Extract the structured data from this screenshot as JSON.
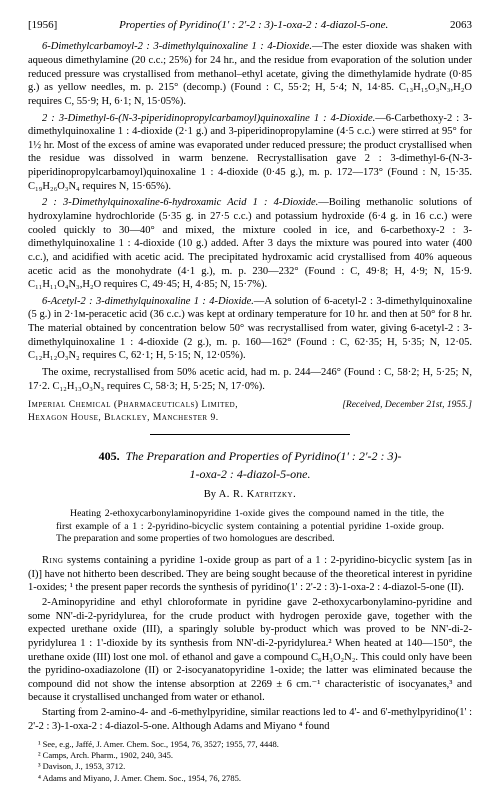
{
  "header": {
    "year": "[1956]",
    "title": "Properties of Pyridino(1' : 2'-2 : 3)-1-oxa-2 : 4-diazol-5-one.",
    "page": "2063"
  },
  "sections": [
    {
      "head": "6-Dimethylcarbamoyl-2 : 3-dimethylquinoxaline 1 : 4-Dioxide.",
      "body": "—The ester dioxide was shaken with aqueous dimethylamine (20 c.c.; 25%) for 24 hr., and the residue from evaporation of the solution under reduced pressure was crystallised from methanol–ethyl acetate, giving the dimethylamide hydrate (0·85 g.) as yellow needles, m. p. 215° (decomp.) (Found : C, 55·2; H, 5·4; N, 14·85. C₁₃H₁₅O₃N₃,H₂O requires C, 55·9; H, 6·1; N, 15·05%)."
    },
    {
      "head": "2 : 3-Dimethyl-6-(N-3-piperidinopropylcarbamoyl)quinoxaline 1 : 4-Dioxide.",
      "body": "—6-Carbethoxy-2 : 3-dimethylquinoxaline 1 : 4-dioxide (2·1 g.) and 3-piperidinopropylamine (4·5 c.c.) were stirred at 95° for 1½ hr. Most of the excess of amine was evaporated under reduced pressure; the product crystallised when the residue was dissolved in warm benzene. Recrystallisation gave 2 : 3-dimethyl-6-(N-3-piperidinopropylcarbamoyl)quinoxaline 1 : 4-dioxide (0·45 g.), m. p. 172—173° (Found : N, 15·35. C₁₉H₂₆O₃N₄ requires N, 15·65%)."
    },
    {
      "head": "2 : 3-Dimethylquinoxaline-6-hydroxamic Acid 1 : 4-Dioxide.",
      "body": "—Boiling methanolic solutions of hydroxylamine hydrochloride (5·35 g. in 27·5 c.c.) and potassium hydroxide (6·4 g. in 16 c.c.) were cooled quickly to 30—40° and mixed, the mixture cooled in ice, and 6-carbethoxy-2 : 3-dimethylquinoxaline 1 : 4-dioxide (10 g.) added. After 3 days the mixture was poured into water (400 c.c.), and acidified with acetic acid. The precipitated hydroxamic acid crystallised from 40% aqueous acetic acid as the monohydrate (4·1 g.), m. p. 230—232° (Found : C, 49·8; H, 4·9; N, 15·9. C₁₁H₁₁O₄N₃,H₂O requires C, 49·45; H, 4·85; N, 15·7%)."
    },
    {
      "head": "6-Acetyl-2 : 3-dimethylquinoxaline 1 : 4-Dioxide.",
      "body": "—A solution of 6-acetyl-2 : 3-dimethylquinoxaline (5 g.) in 2·1м-peracetic acid (36 c.c.) was kept at ordinary temperature for 10 hr. and then at 50° for 8 hr. The material obtained by concentration below 50° was recrystallised from water, giving 6-acetyl-2 : 3-dimethylquinoxaline 1 : 4-dioxide (2 g.), m. p. 160—162° (Found : C, 62·35; H, 5·35; N, 12·05. C₁₂H₁₂O₃N₂ requires C, 62·1; H, 5·15; N, 12·05%)."
    },
    {
      "head": "",
      "body": "The oxime, recrystallised from 50% acetic acid, had m. p. 244—246° (Found : C, 58·2; H, 5·25; N, 17·2. C₁₂H₁₃O₃N₃ requires C, 58·3; H, 5·25; N, 17·0%)."
    }
  ],
  "affiliation": {
    "left1": "Imperial Chemical (Pharmaceuticals) Limited,",
    "left2": "Hexagon House, Blackley, Manchester 9.",
    "right": "[Received, December 21st, 1955.]"
  },
  "article": {
    "number": "405.",
    "title_line1": "The Preparation and Properties of Pyridino(1' : 2'-2 : 3)-",
    "title_line2": "1-oxa-2 : 4-diazol-5-one.",
    "author": "By A. R. Katritzky.",
    "abstract": "Heating 2-ethoxycarbonylaminopyridine 1-oxide gives the compound named in the title, the first example of a 1 : 2-pyridino-bicyclic system containing a potential pyridine 1-oxide group. The preparation and some properties of two homologues are described."
  },
  "body_paras": [
    "Ring systems containing a pyridine 1-oxide group as part of a 1 : 2-pyridino-bicyclic system [as in (I)] have not hitherto been described. They are being sought because of the theoretical interest in pyridine 1-oxides; ¹ the present paper records the synthesis of pyridino(1' : 2'-2 : 3)-1-oxa-2 : 4-diazol-5-one (II).",
    "2-Aminopyridine and ethyl chloroformate in pyridine gave 2-ethoxycarbonylamino-pyridine and some NN'-di-2-pyridylurea, for the crude product with hydrogen peroxide gave, together with the expected urethane oxide (III), a sparingly soluble by-product which was proved to be NN'-di-2-pyridylurea 1 : 1'-dioxide by its synthesis from NN'-di-2-pyridylurea.² When heated at 140—150°, the urethane oxide (III) lost one mol. of ethanol and gave a compound C₆H₃O₂N₂. This could only have been the pyridino-oxadiazolone (II) or 2-isocyanatopyridine 1-oxide; the latter was eliminated because the compound did not show the intense absorption at 2269 ± 6 cm.⁻¹ characteristic of isocyanates,³ and because it crystallised unchanged from water or ethanol.",
    "Starting from 2-amino-4- and -6-methylpyridine, similar reactions led to 4'- and 6'-methylpyridino(1' : 2'-2 : 3)-1-oxa-2 : 4-diazol-5-one. Although Adams and Miyano ⁴ found"
  ],
  "footnotes": [
    "¹ See, e.g., Jaffé, J. Amer. Chem. Soc., 1954, 76, 3527; 1955, 77, 4448.",
    "² Camps, Arch. Pharm., 1902, 240, 345.",
    "³ Davison, J., 1953, 3712.",
    "⁴ Adams and Miyano, J. Amer. Chem. Soc., 1954, 76, 2785."
  ]
}
